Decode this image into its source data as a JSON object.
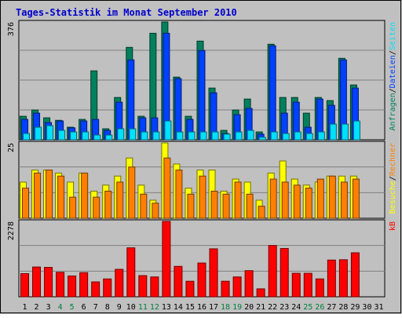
{
  "title": "Tages-Statistik im Monat September 2010",
  "colors": {
    "frame_bg": "#C0C0C0",
    "plot_bg": "#C0C0C0",
    "title": "#0000CC",
    "grid": "#808080",
    "hits": "#00805C",
    "files": "#0040FF",
    "pages": "#00E0FF",
    "visits": "#FFFF00",
    "sites": "#FF8000",
    "kbytes": "#FF0000",
    "weekend_label": "#008040",
    "weekday_label": "#000000"
  },
  "axis_labels": {
    "top_max": "376",
    "mid_max": "25",
    "bottom_max": "2278"
  },
  "right_labels": {
    "top": [
      {
        "text": "Anfragen",
        "color": "#00805C"
      },
      {
        "text": "Dateien",
        "color": "#0040FF"
      },
      {
        "text": "Seiten",
        "color": "#00E0FF"
      }
    ],
    "mid": [
      {
        "text": "Besuche",
        "color": "#FFFF00"
      },
      {
        "text": "Rechner",
        "color": "#FF8000"
      }
    ],
    "bottom": [
      {
        "text": "kB",
        "color": "#FF0000"
      }
    ]
  },
  "chart_data": {
    "type": "bar",
    "categories": [
      "1",
      "2",
      "3",
      "4",
      "5",
      "6",
      "7",
      "8",
      "9",
      "10",
      "11",
      "12",
      "13",
      "14",
      "15",
      "16",
      "17",
      "18",
      "19",
      "20",
      "21",
      "22",
      "23",
      "24",
      "25",
      "26",
      "27",
      "28",
      "29",
      "30",
      "31"
    ],
    "weekend_days": [
      "4",
      "5",
      "11",
      "12",
      "18",
      "19",
      "25",
      "26"
    ],
    "panels": [
      {
        "name": "top",
        "ylim": [
          0,
          376
        ],
        "series": [
          {
            "name": "Anfragen",
            "values": [
              75,
              95,
              70,
              62,
              40,
              65,
              220,
              35,
              135,
              295,
              75,
              340,
              376,
              200,
              75,
              315,
              165,
              30,
              95,
              130,
              25,
              305,
              135,
              135,
              85,
              135,
              125,
              260,
              175,
              0,
              0
            ]
          },
          {
            "name": "Dateien",
            "values": [
              65,
              85,
              55,
              60,
              38,
              60,
              65,
              30,
              120,
              255,
              70,
              70,
              340,
              195,
              65,
              285,
              150,
              20,
              80,
              100,
              18,
              300,
              85,
              120,
              40,
              130,
              110,
              255,
              165,
              0,
              0
            ]
          },
          {
            "name": "Seiten",
            "values": [
              20,
              40,
              45,
              30,
              25,
              25,
              15,
              15,
              35,
              35,
              25,
              25,
              60,
              25,
              25,
              25,
              25,
              18,
              25,
              30,
              8,
              25,
              20,
              25,
              20,
              25,
              50,
              50,
              60,
              0,
              0
            ]
          }
        ]
      },
      {
        "name": "mid",
        "ylim": [
          0,
          25
        ],
        "series": [
          {
            "name": "Besuche",
            "values": [
              12,
              16,
              16,
              15,
              12,
              15,
              9,
              11,
              14,
              20,
              11,
              6,
              25,
              18,
              10,
              16,
              16,
              9,
              13,
              12,
              6,
              15,
              19,
              13,
              11,
              12,
              14,
              14,
              14,
              0,
              0
            ]
          },
          {
            "name": "Rechner",
            "values": [
              10,
              15,
              16,
              14,
              7,
              15,
              7,
              9,
              12,
              17,
              8,
              5,
              20,
              16,
              8,
              14,
              9,
              8,
              12,
              8,
              4,
              13,
              12,
              11,
              10,
              13,
              14,
              12,
              13,
              0,
              0
            ]
          }
        ]
      },
      {
        "name": "bottom",
        "ylim": [
          0,
          2278
        ],
        "series": [
          {
            "name": "kB",
            "values": [
              700,
              900,
              890,
              740,
              630,
              730,
              450,
              540,
              830,
              1480,
              640,
              600,
              2278,
              920,
              470,
              1020,
              1450,
              470,
              600,
              790,
              240,
              1550,
              1460,
              710,
              710,
              540,
              1110,
              1120,
              1330,
              0,
              0
            ]
          }
        ]
      }
    ]
  }
}
